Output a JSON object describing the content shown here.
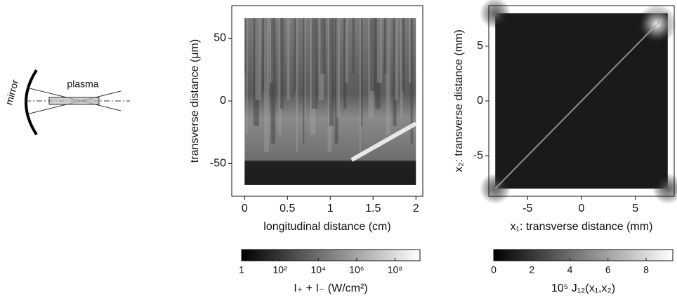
{
  "schematic": {
    "labels": [
      "mirror",
      "plasma"
    ]
  },
  "chart_data": [
    {
      "type": "heatmap",
      "xlabel": "longitudinal distance (cm)",
      "ylabel": "transverse distance (μm)",
      "xlim": [
        -0.15,
        2.08
      ],
      "xticks": [
        0,
        0.5,
        1,
        1.5,
        2
      ],
      "ylim": [
        -76,
        76
      ],
      "yticks": [
        -50,
        0,
        50
      ],
      "colorbar": {
        "label": "I₊ + I₋ (W/cm²)",
        "scale": "log",
        "zlim": [
          1,
          2000000000
        ],
        "ticks": [
          1,
          {
            "value": 100,
            "label": "10²"
          },
          {
            "value": 10000,
            "label": "10⁴"
          },
          {
            "value": 1000000,
            "label": "10⁶"
          },
          {
            "value": 100000000,
            "label": "10⁸"
          }
        ]
      }
    },
    {
      "type": "heatmap",
      "xlabel": "x₁: transverse distance (mm)",
      "ylabel": "x₂: transverse distance (mm)",
      "xlim": [
        -8.6,
        8.6
      ],
      "xticks": [
        -5,
        0,
        5
      ],
      "ylim": [
        -8.7,
        8.7
      ],
      "yticks": [
        -5,
        0,
        5
      ],
      "colorbar": {
        "label": "10⁵ J₁₂(x₁,x₂)",
        "scale": "linear",
        "zlim": [
          0,
          9.4
        ],
        "ticks": [
          0,
          2,
          4,
          6,
          8
        ]
      }
    }
  ]
}
